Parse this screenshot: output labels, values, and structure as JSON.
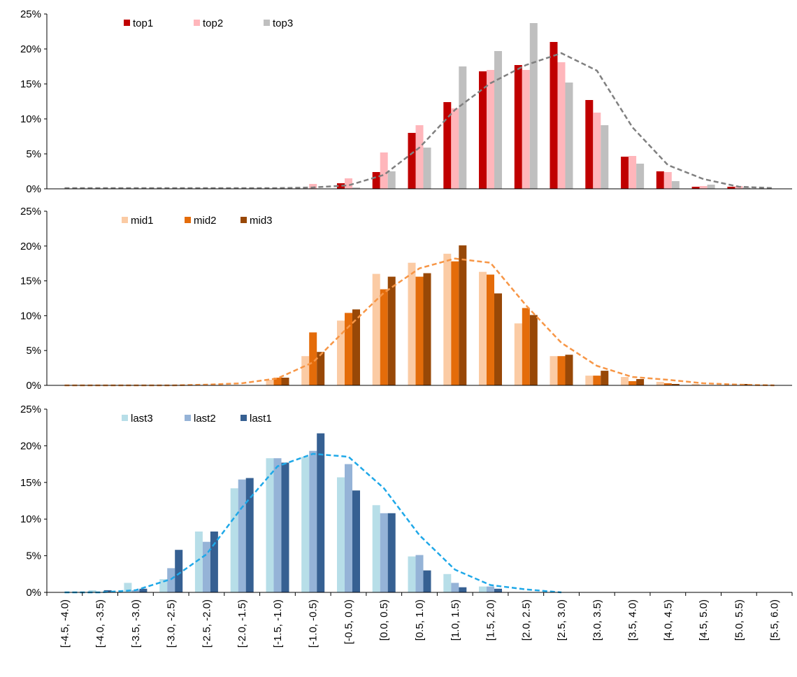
{
  "chart_data": [
    {
      "type": "bar",
      "categories": [
        "[-4.5, -4.0)",
        "[-4.0, -3.5)",
        "[-3.5, -3.0)",
        "[-3.0, -2.5)",
        "[-2.5, -2.0)",
        "[-2.0, -1.5)",
        "[-1.5, -1.0)",
        "[-1.0, -0.5)",
        "[-0.5, 0.0)",
        "[0.0, 0.5)",
        "[0.5, 1.0)",
        "[1.0, 1.5)",
        "[1.5, 2.0)",
        "[2.0, 2.5)",
        "[2.5, 3.0)",
        "[3.0, 3.5)",
        "[3.5, 4.0)",
        "[4.0, 4.5)",
        "[4.5, 5.0)",
        "[5.0, 5.5)",
        "[5.5, 6.0)"
      ],
      "ylim": [
        0,
        25
      ],
      "yticks": [
        "0%",
        "5%",
        "10%",
        "15%",
        "20%",
        "25%"
      ],
      "legend_position": "top-left",
      "series": [
        {
          "name": "top1",
          "color": "#c00000",
          "values": [
            0,
            0,
            0,
            0,
            0,
            0,
            0,
            0.0,
            0.8,
            2.4,
            8.0,
            12.4,
            16.8,
            17.7,
            21.0,
            12.7,
            4.6,
            2.5,
            0.3,
            0.3,
            0
          ]
        },
        {
          "name": "top2",
          "color": "#ffb6bb",
          "values": [
            0,
            0,
            0,
            0,
            0,
            0,
            0,
            0.7,
            1.5,
            5.2,
            9.1,
            11.5,
            17.0,
            17.0,
            18.1,
            10.9,
            4.7,
            2.4,
            0.4,
            0.4,
            0
          ]
        },
        {
          "name": "top3",
          "color": "#bfbfbf",
          "values": [
            0,
            0,
            0,
            0,
            0,
            0,
            0,
            0.0,
            0.2,
            2.5,
            5.9,
            17.5,
            19.7,
            23.7,
            15.2,
            9.1,
            3.6,
            1.1,
            0.6,
            0.2,
            0
          ]
        }
      ],
      "trend": {
        "color": "#808080",
        "values": [
          0.1,
          0.1,
          0.1,
          0.1,
          0.1,
          0.1,
          0.1,
          0.2,
          0.5,
          2.0,
          5.9,
          11.3,
          15.1,
          17.7,
          19.4,
          16.9,
          8.8,
          3.4,
          1.4,
          0.3,
          0.1
        ]
      }
    },
    {
      "type": "bar",
      "categories": [
        "[-4.5, -4.0)",
        "[-4.0, -3.5)",
        "[-3.5, -3.0)",
        "[-3.0, -2.5)",
        "[-2.5, -2.0)",
        "[-2.0, -1.5)",
        "[-1.5, -1.0)",
        "[-1.0, -0.5)",
        "[-0.5, 0.0)",
        "[0.0, 0.5)",
        "[0.5, 1.0)",
        "[1.0, 1.5)",
        "[1.5, 2.0)",
        "[2.0, 2.5)",
        "[2.5, 3.0)",
        "[3.0, 3.5)",
        "[3.5, 4.0)",
        "[4.0, 4.5)",
        "[4.5, 5.0)",
        "[5.0, 5.5)",
        "[5.5, 6.0)"
      ],
      "ylim": [
        0,
        25
      ],
      "yticks": [
        "0%",
        "5%",
        "10%",
        "15%",
        "20%",
        "25%"
      ],
      "legend_position": "top-left",
      "series": [
        {
          "name": "mid1",
          "color": "#fbcba4",
          "values": [
            0,
            0,
            0,
            0,
            0,
            0,
            0.8,
            4.2,
            9.3,
            16.0,
            17.6,
            18.9,
            16.3,
            8.9,
            4.2,
            1.4,
            1.2,
            0.5,
            0.2,
            0,
            0
          ]
        },
        {
          "name": "mid2",
          "color": "#e46c0a",
          "values": [
            0,
            0,
            0,
            0,
            0,
            0,
            1.1,
            7.6,
            10.4,
            13.8,
            15.6,
            17.8,
            15.9,
            11.1,
            4.2,
            1.4,
            0.6,
            0.3,
            0,
            0,
            0
          ]
        },
        {
          "name": "mid3",
          "color": "#984807",
          "values": [
            0,
            0,
            0,
            0,
            0,
            0,
            1.1,
            4.8,
            10.9,
            15.6,
            16.1,
            20.1,
            13.2,
            10.1,
            4.4,
            2.1,
            0.9,
            0.2,
            0,
            0.2,
            0
          ]
        }
      ],
      "trend": {
        "color": "#f79646",
        "values": [
          0,
          0,
          0,
          0,
          0.1,
          0.3,
          1.0,
          3.3,
          8.4,
          13.3,
          16.8,
          18.2,
          17.6,
          11.5,
          6.1,
          2.8,
          1.2,
          0.8,
          0.3,
          0.1,
          0
        ]
      }
    },
    {
      "type": "bar",
      "categories": [
        "[-4.5, -4.0)",
        "[-4.0, -3.5)",
        "[-3.5, -3.0)",
        "[-3.0, -2.5)",
        "[-2.5, -2.0)",
        "[-2.0, -1.5)",
        "[-1.5, -1.0)",
        "[-1.0, -0.5)",
        "[-0.5, 0.0)",
        "[0.0, 0.5)",
        "[0.5, 1.0)",
        "[1.0, 1.5)",
        "[1.5, 2.0)",
        "[2.0, 2.5)",
        "[2.5, 3.0)",
        "[3.0, 3.5)",
        "[3.5, 4.0)",
        "[4.0, 4.5)",
        "[4.5, 5.0)",
        "[5.0, 5.5)",
        "[5.5, 6.0)"
      ],
      "ylim": [
        0,
        25
      ],
      "yticks": [
        "0%",
        "5%",
        "10%",
        "15%",
        "20%",
        "25%"
      ],
      "legend_position": "top-left",
      "series": [
        {
          "name": "last3",
          "color": "#b7dee8",
          "values": [
            0,
            0.3,
            1.3,
            1.8,
            8.3,
            14.2,
            18.3,
            18.5,
            15.7,
            11.9,
            4.9,
            2.5,
            0.8,
            0,
            0,
            0,
            0,
            0,
            0,
            0,
            0
          ]
        },
        {
          "name": "last2",
          "color": "#95b3d7",
          "values": [
            0,
            0,
            0.3,
            3.3,
            6.9,
            15.4,
            18.3,
            19.3,
            17.5,
            10.8,
            5.1,
            1.3,
            0.8,
            0,
            0,
            0,
            0,
            0,
            0,
            0,
            0
          ]
        },
        {
          "name": "last1",
          "color": "#366092",
          "values": [
            0,
            0.3,
            0.5,
            5.8,
            8.3,
            15.6,
            17.7,
            21.7,
            13.9,
            10.8,
            3.0,
            0.7,
            0.5,
            0,
            0,
            0,
            0,
            0,
            0,
            0,
            0
          ]
        }
      ],
      "trend": {
        "color": "#1fa8e8",
        "values": [
          0,
          0,
          0.3,
          1.8,
          5.2,
          11.6,
          17.2,
          18.9,
          18.5,
          14.2,
          7.8,
          3.1,
          1.0,
          0.4,
          0,
          null,
          null,
          null,
          null,
          null,
          null
        ]
      }
    }
  ]
}
